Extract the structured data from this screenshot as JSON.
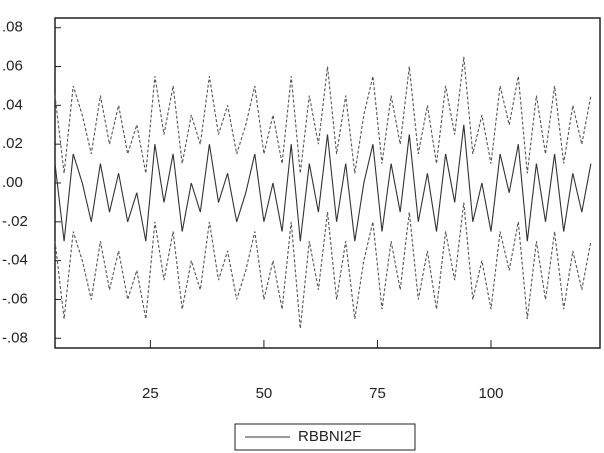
{
  "chart_data": {
    "type": "line",
    "x": [
      4,
      6,
      8,
      10,
      12,
      14,
      16,
      18,
      20,
      22,
      24,
      26,
      28,
      30,
      32,
      34,
      36,
      38,
      40,
      42,
      44,
      46,
      48,
      50,
      52,
      54,
      56,
      58,
      60,
      62,
      64,
      66,
      68,
      70,
      72,
      74,
      76,
      78,
      80,
      82,
      84,
      86,
      88,
      90,
      92,
      94,
      96,
      98,
      100,
      102,
      104,
      106,
      108,
      110,
      112,
      114,
      116,
      118,
      120,
      122
    ],
    "series": [
      {
        "name": "RBBNI2F",
        "color": "#333333",
        "dashed": false,
        "values": [
          0.01,
          -0.03,
          0.015,
          0.0,
          -0.02,
          0.01,
          -0.015,
          0.005,
          -0.02,
          -0.005,
          -0.03,
          0.02,
          -0.01,
          0.015,
          -0.025,
          0.0,
          -0.015,
          0.02,
          -0.01,
          0.005,
          -0.02,
          -0.005,
          0.015,
          -0.02,
          0.0,
          -0.025,
          0.02,
          -0.03,
          0.01,
          -0.015,
          0.025,
          -0.02,
          0.01,
          -0.03,
          0.0,
          0.02,
          -0.025,
          0.01,
          -0.015,
          0.025,
          -0.02,
          0.005,
          -0.025,
          0.015,
          -0.01,
          0.03,
          -0.02,
          0.0,
          -0.025,
          0.015,
          -0.005,
          0.02,
          -0.03,
          0.01,
          -0.02,
          0.015,
          -0.025,
          0.005,
          -0.015,
          0.01
        ]
      },
      {
        "color": "#555555",
        "dashed": true,
        "values": [
          0.045,
          0.005,
          0.05,
          0.035,
          0.015,
          0.045,
          0.02,
          0.04,
          0.015,
          0.03,
          0.005,
          0.055,
          0.025,
          0.05,
          0.01,
          0.035,
          0.02,
          0.055,
          0.025,
          0.04,
          0.015,
          0.03,
          0.05,
          0.015,
          0.035,
          0.01,
          0.055,
          0.005,
          0.045,
          0.02,
          0.06,
          0.015,
          0.045,
          0.005,
          0.035,
          0.055,
          0.01,
          0.045,
          0.02,
          0.06,
          0.015,
          0.04,
          0.01,
          0.05,
          0.025,
          0.065,
          0.015,
          0.035,
          0.01,
          0.05,
          0.03,
          0.055,
          0.005,
          0.045,
          0.015,
          0.05,
          0.01,
          0.04,
          0.02,
          0.045
        ]
      },
      {
        "color": "#555555",
        "dashed": true,
        "values": [
          -0.03,
          -0.07,
          -0.025,
          -0.04,
          -0.06,
          -0.03,
          -0.055,
          -0.035,
          -0.06,
          -0.045,
          -0.07,
          -0.02,
          -0.05,
          -0.025,
          -0.065,
          -0.04,
          -0.055,
          -0.02,
          -0.05,
          -0.035,
          -0.06,
          -0.045,
          -0.025,
          -0.06,
          -0.04,
          -0.065,
          -0.02,
          -0.075,
          -0.03,
          -0.055,
          -0.015,
          -0.06,
          -0.03,
          -0.07,
          -0.04,
          -0.02,
          -0.065,
          -0.03,
          -0.055,
          -0.015,
          -0.06,
          -0.035,
          -0.065,
          -0.025,
          -0.05,
          -0.01,
          -0.06,
          -0.04,
          -0.065,
          -0.025,
          -0.045,
          -0.02,
          -0.07,
          -0.03,
          -0.06,
          -0.025,
          -0.065,
          -0.035,
          -0.055,
          -0.03
        ]
      }
    ],
    "xlim": [
      4,
      124
    ],
    "xticks": [
      25,
      50,
      75,
      100
    ],
    "ylim": [
      -0.085,
      0.085
    ],
    "yticks": [
      {
        "value": 0.08,
        "label": ".08"
      },
      {
        "value": 0.06,
        "label": ".06"
      },
      {
        "value": 0.04,
        "label": ".04"
      },
      {
        "value": 0.02,
        "label": ".02"
      },
      {
        "value": 0,
        "label": ".00"
      },
      {
        "value": -0.02,
        "label": "-.02"
      },
      {
        "value": -0.04,
        "label": "-.04"
      },
      {
        "value": -0.06,
        "label": "-.06"
      },
      {
        "value": -0.08,
        "label": "-.08"
      }
    ],
    "legend": "bottom"
  }
}
